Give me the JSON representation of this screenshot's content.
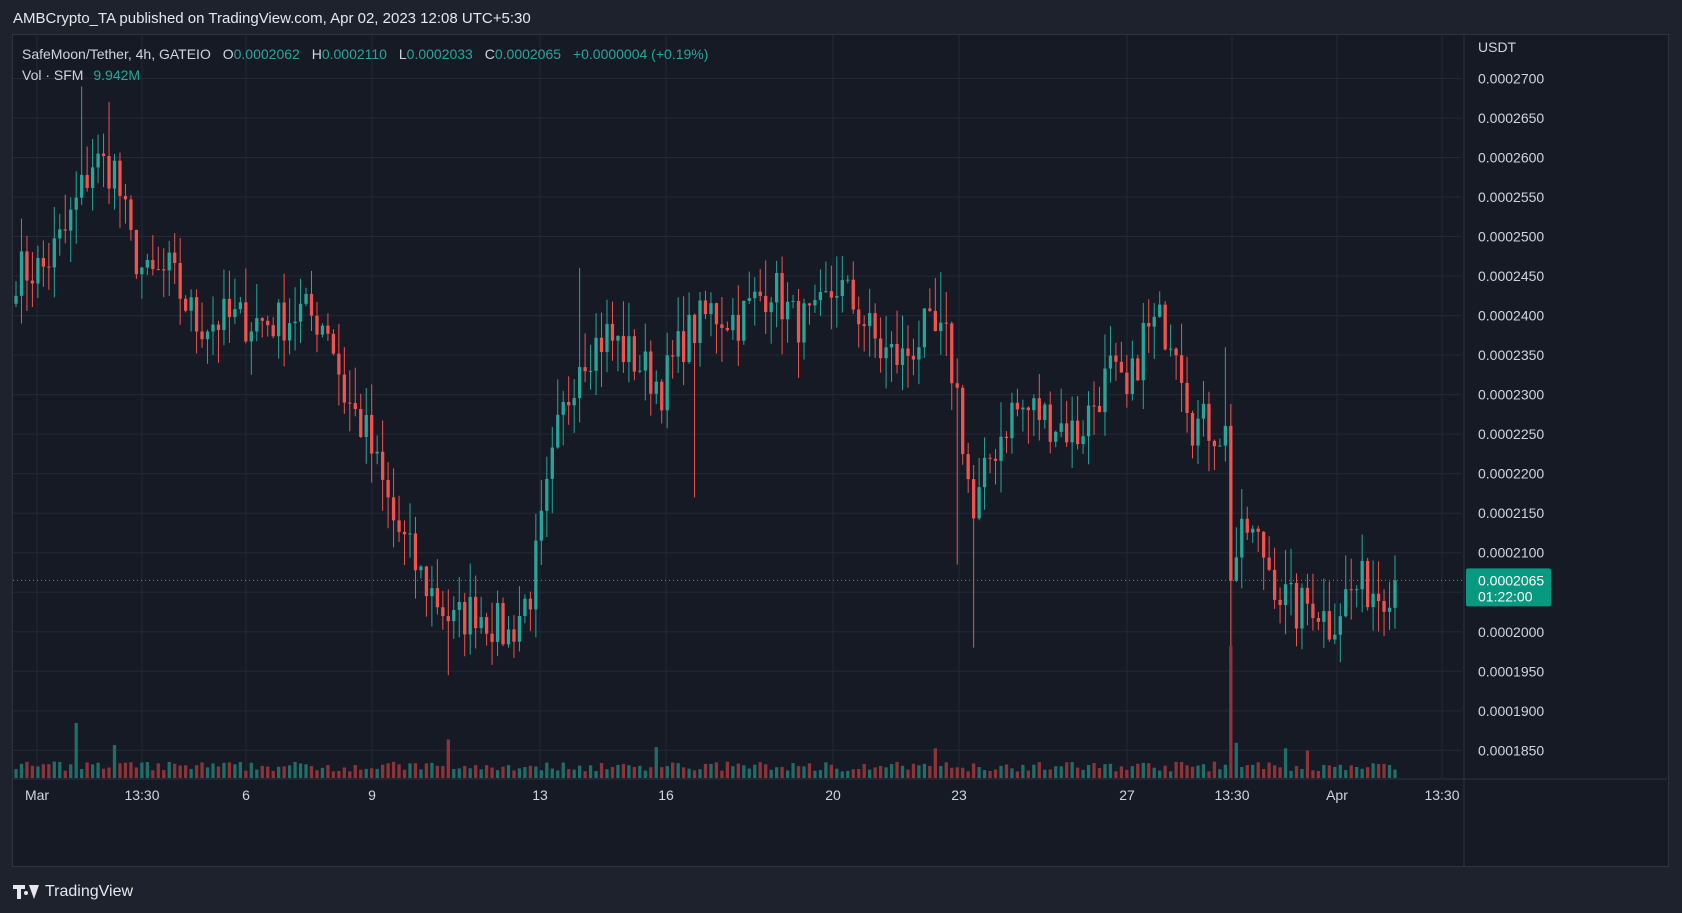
{
  "header": {
    "publisher_line": "AMBCrypto_TA published on TradingView.com, Apr 02, 2023 12:08 UTC+5:30"
  },
  "legend": {
    "symbol": "SafeMoon/Tether, 4h, GATEIO",
    "o_label": "O",
    "o_value": "0.0002062",
    "h_label": "H",
    "h_value": "0.0002110",
    "l_label": "L",
    "l_value": "0.0002033",
    "c_label": "C",
    "c_value": "0.0002065",
    "change": "+0.0000004 (+0.19%)",
    "vol_label": "Vol · SFM",
    "vol_value": "9.942M"
  },
  "footer": {
    "brand": "TradingView"
  },
  "colors": {
    "up": "#26a69a",
    "down": "#ef5350",
    "vol_up": "#1f6e69",
    "vol_down": "#8c3438",
    "grid": "#242836",
    "background": "#161a25"
  },
  "chart_data": {
    "type": "candlestick",
    "axis_currency": "USDT",
    "ylim": [
      0.0001815,
      0.0002755
    ],
    "y_ticks": [
      "0.0002700",
      "0.0002650",
      "0.0002600",
      "0.0002550",
      "0.0002500",
      "0.0002450",
      "0.0002400",
      "0.0002350",
      "0.0002300",
      "0.0002250",
      "0.0002200",
      "0.0002150",
      "0.0002100",
      "0.0002050",
      "0.0002000",
      "0.0001950",
      "0.0001900",
      "0.0001850"
    ],
    "x_ticks": [
      "Mar",
      "13:30",
      "6",
      "9",
      "13",
      "16",
      "20",
      "23",
      "27",
      "13:30",
      "Apr",
      "13:30"
    ],
    "last_price_label": "0.0002065",
    "countdown_label": "01:22:00",
    "volume": {
      "name": "Vol · SFM",
      "last": "9.942M"
    },
    "ohlc_anchors": [
      [
        0,
        0.0002455
      ],
      [
        5,
        0.000246
      ],
      [
        9,
        0.0002505
      ],
      [
        14,
        0.0002595
      ],
      [
        18,
        0.0002585
      ],
      [
        21,
        0.000249
      ],
      [
        24,
        0.0002445
      ],
      [
        28,
        0.0002455
      ],
      [
        33,
        0.000239
      ],
      [
        38,
        0.0002395
      ],
      [
        48,
        0.0002392
      ],
      [
        52,
        0.0002405
      ],
      [
        57,
        0.000239
      ],
      [
        60,
        0.00023
      ],
      [
        64,
        0.000225
      ],
      [
        69,
        0.000214
      ],
      [
        74,
        0.000207
      ],
      [
        80,
        0.000201
      ],
      [
        84,
        0.000203
      ],
      [
        90,
        0.0001995
      ],
      [
        94,
        0.000205
      ],
      [
        99,
        0.000225
      ],
      [
        103,
        0.000235
      ],
      [
        108,
        0.0002375
      ],
      [
        113,
        0.0002345
      ],
      [
        118,
        0.000231
      ],
      [
        122,
        0.000237
      ],
      [
        127,
        0.0002405
      ],
      [
        132,
        0.0002395
      ],
      [
        138,
        0.000244
      ],
      [
        142,
        0.0002395
      ],
      [
        146,
        0.000239
      ],
      [
        150,
        0.000244
      ],
      [
        154,
        0.0002405
      ],
      [
        158,
        0.0002355
      ],
      [
        162,
        0.0002345
      ],
      [
        166,
        0.000238
      ],
      [
        170,
        0.0002365
      ],
      [
        172,
        0.00023
      ],
      [
        175,
        0.000214
      ],
      [
        178,
        0.000222
      ],
      [
        182,
        0.000228
      ],
      [
        186,
        0.000228
      ],
      [
        190,
        0.0002265
      ],
      [
        194,
        0.000225
      ],
      [
        197,
        0.000229
      ],
      [
        200,
        0.000233
      ],
      [
        203,
        0.000229
      ],
      [
        206,
        0.0002375
      ],
      [
        209,
        0.000239
      ],
      [
        212,
        0.0002375
      ],
      [
        215,
        0.0002265
      ],
      [
        218,
        0.000226
      ],
      [
        221,
        0.000225
      ],
      [
        222,
        0.000208
      ],
      [
        225,
        0.000213
      ],
      [
        228,
        0.00021
      ],
      [
        231,
        0.000205
      ],
      [
        234,
        0.0002025
      ],
      [
        237,
        0.000204
      ],
      [
        240,
        0.000201
      ],
      [
        243,
        0.0002045
      ],
      [
        246,
        0.000206
      ],
      [
        249,
        0.000205
      ],
      [
        252,
        0.0002065
      ]
    ]
  }
}
